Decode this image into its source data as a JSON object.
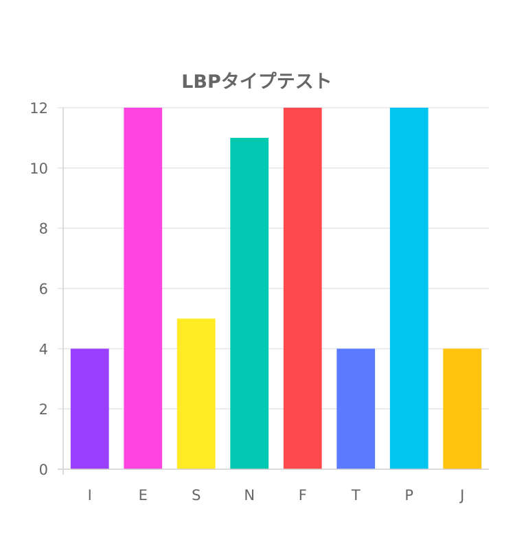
{
  "chart_data": {
    "type": "bar",
    "title": "LBPタイプテスト",
    "xlabel": "",
    "ylabel": "",
    "categories": [
      "I",
      "E",
      "S",
      "N",
      "F",
      "T",
      "P",
      "J"
    ],
    "values": [
      4,
      12,
      5,
      11,
      12,
      4,
      12,
      4
    ],
    "colors": [
      "#9b3fff",
      "#ff45df",
      "#ffeb23",
      "#00c8b1",
      "#ff4a4d",
      "#5a7aff",
      "#00c5ef",
      "#ffc20d"
    ],
    "ylim": [
      0,
      12
    ],
    "yticks": [
      0,
      2,
      4,
      6,
      8,
      10,
      12
    ],
    "grid": true,
    "legend": "none"
  }
}
